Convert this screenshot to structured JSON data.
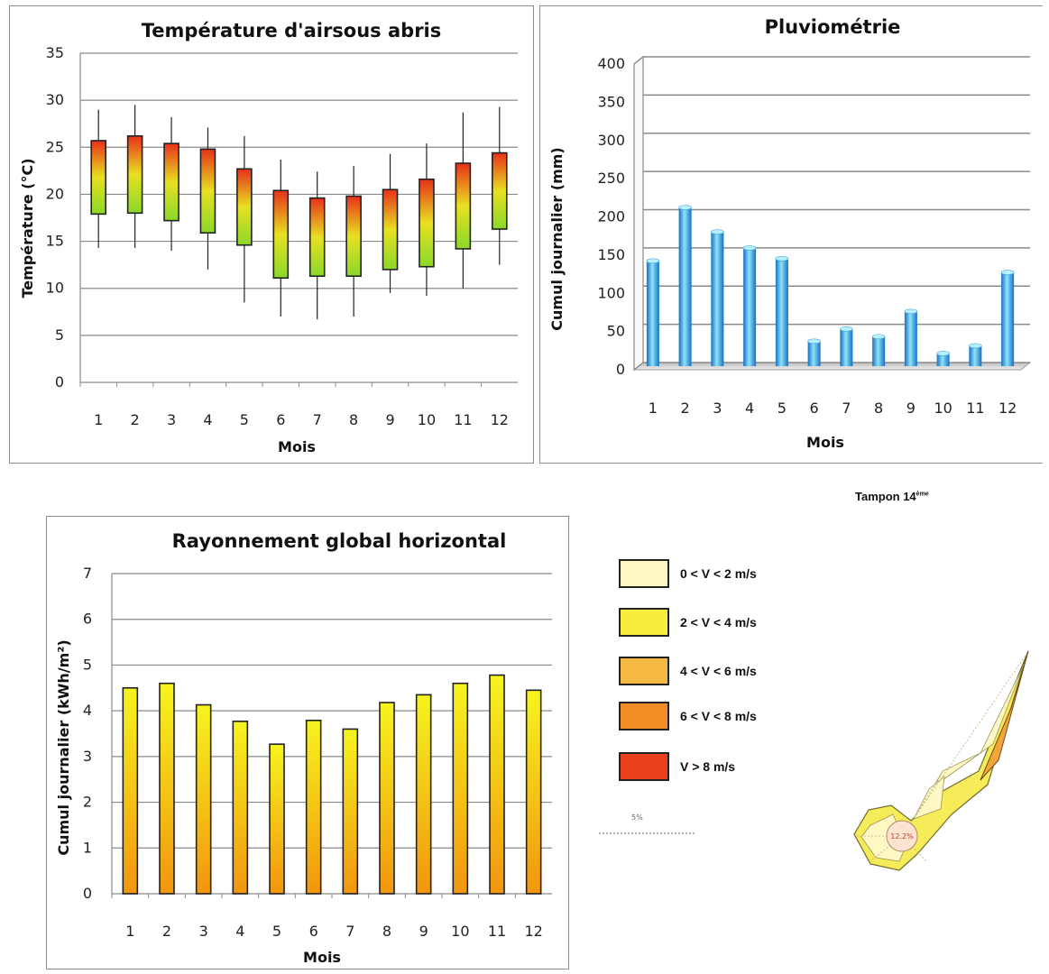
{
  "chart_data": [
    {
      "id": "temperature",
      "type": "box",
      "title": "Température d'airsous abris",
      "xlabel": "Mois",
      "ylabel": "Température  (°C)",
      "ylim": [
        0,
        35
      ],
      "yticks": [
        0,
        5,
        10,
        15,
        20,
        25,
        30,
        35
      ],
      "categories": [
        "1",
        "2",
        "3",
        "4",
        "5",
        "6",
        "7",
        "8",
        "9",
        "10",
        "11",
        "12"
      ],
      "series": [
        {
          "low": [
            14.3,
            14.3,
            14.0,
            12.0,
            8.5,
            7.0,
            6.7,
            7.0,
            9.5,
            9.2,
            10.0,
            12.5
          ],
          "q1": [
            17.9,
            18.0,
            17.2,
            15.9,
            14.6,
            11.1,
            11.3,
            11.3,
            12.0,
            12.3,
            14.2,
            16.3
          ],
          "q3": [
            25.7,
            26.2,
            25.4,
            24.8,
            22.7,
            20.4,
            19.6,
            19.8,
            20.5,
            21.6,
            23.3,
            24.4
          ],
          "high": [
            29.0,
            29.5,
            28.2,
            27.1,
            26.2,
            23.7,
            22.4,
            23.0,
            24.3,
            25.4,
            28.7,
            29.3
          ]
        }
      ]
    },
    {
      "id": "rainfall",
      "type": "bar",
      "title": "Pluviométrie",
      "xlabel": "Mois",
      "ylabel": "Cumul journalier (mm)",
      "ylim": [
        0,
        400
      ],
      "yticks": [
        0,
        50,
        100,
        150,
        200,
        250,
        300,
        350,
        400
      ],
      "categories": [
        "1",
        "2",
        "3",
        "4",
        "5",
        "6",
        "7",
        "8",
        "9",
        "10",
        "11",
        "12"
      ],
      "values": [
        140,
        210,
        178,
        157,
        143,
        35,
        51,
        41,
        74,
        19,
        29,
        125
      ]
    },
    {
      "id": "radiation",
      "type": "bar",
      "title": "Rayonnement global horizontal",
      "xlabel": "Mois",
      "ylabel": "Cumul journalier  (kWh/m²)",
      "ylim": [
        0,
        7
      ],
      "yticks": [
        0,
        1,
        2,
        3,
        4,
        5,
        6,
        7
      ],
      "categories": [
        "1",
        "2",
        "3",
        "4",
        "5",
        "6",
        "7",
        "8",
        "9",
        "10",
        "11",
        "12"
      ],
      "values": [
        4.5,
        4.6,
        4.13,
        3.77,
        3.27,
        3.79,
        3.6,
        4.18,
        4.35,
        4.6,
        4.78,
        4.45
      ]
    }
  ],
  "windrose": {
    "station_label": "Tampon 14",
    "station_label_sup": "ème",
    "scale_label": "5%",
    "center_label": "12.2%",
    "legend": [
      {
        "label": "0 < V < 2 m/s",
        "color": "#fff7c4"
      },
      {
        "label": "2 < V < 4 m/s",
        "color": "#f8ec3c"
      },
      {
        "label": "4 < V < 6 m/s",
        "color": "#f5b941"
      },
      {
        "label": "6 < V < 8 m/s",
        "color": "#f28d25"
      },
      {
        "label": "V > 8 m/s",
        "color": "#e9401c"
      }
    ]
  },
  "colors": {
    "grid": "#8a8a8a",
    "box_top": "#e8301a",
    "box_mid": "#e8e020",
    "box_bottom": "#8ad82a",
    "rain_light": "#8fe3fa",
    "rain_dark": "#1570c4",
    "rad_top": "#f6f41e",
    "rad_bottom": "#f2960e"
  }
}
